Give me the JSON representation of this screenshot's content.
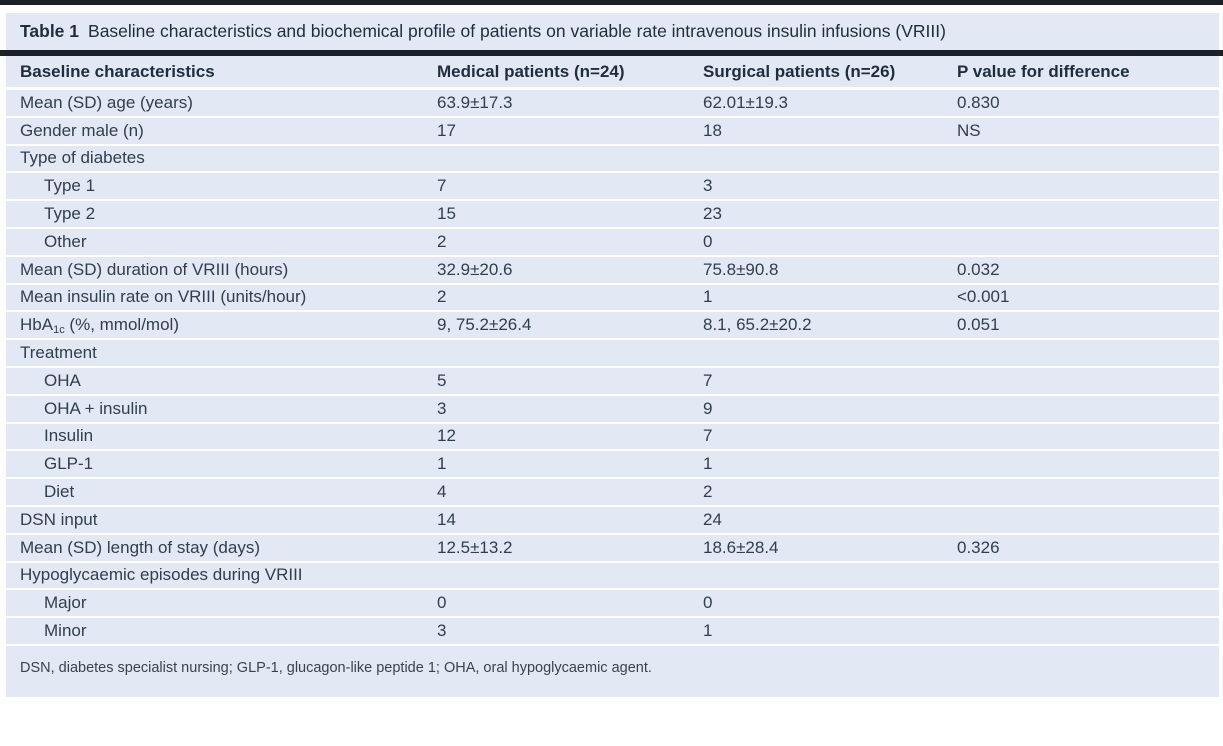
{
  "title": {
    "label": "Table 1",
    "caption": "Baseline characteristics and biochemical profile of patients on variable rate intravenous insulin infusions (VRIII)"
  },
  "columns": [
    "Baseline characteristics",
    "Medical patients (n=24)",
    "Surgical patients (n=26)",
    "P value for difference"
  ],
  "rows": [
    {
      "main": "Mean (SD) age (years)",
      "sub": "",
      "rest": "",
      "medical": "63.9±17.3",
      "surgical": "62.01±19.3",
      "p": "0.830",
      "indent": false
    },
    {
      "main": "Gender male (n)",
      "sub": "",
      "rest": "",
      "medical": "17",
      "surgical": "18",
      "p": "NS",
      "indent": false
    },
    {
      "main": "Type of diabetes",
      "sub": "",
      "rest": "",
      "medical": "",
      "surgical": "",
      "p": "",
      "indent": false
    },
    {
      "main": "Type 1",
      "sub": "",
      "rest": "",
      "medical": "7",
      "surgical": "3",
      "p": "",
      "indent": true
    },
    {
      "main": "Type 2",
      "sub": "",
      "rest": "",
      "medical": "15",
      "surgical": "23",
      "p": "",
      "indent": true
    },
    {
      "main": "Other",
      "sub": "",
      "rest": "",
      "medical": "2",
      "surgical": "0",
      "p": "",
      "indent": true
    },
    {
      "main": "Mean (SD) duration of VRIII (hours)",
      "sub": "",
      "rest": "",
      "medical": "32.9±20.6",
      "surgical": "75.8±90.8",
      "p": "0.032",
      "indent": false
    },
    {
      "main": "Mean insulin rate on VRIII (units/hour)",
      "sub": "",
      "rest": "",
      "medical": "2",
      "surgical": "1",
      "p": "<0.001",
      "indent": false
    },
    {
      "main": "HbA",
      "sub": "1c",
      "rest": " (%, mmol/mol)",
      "medical": "9, 75.2±26.4",
      "surgical": "8.1, 65.2±20.2",
      "p": "0.051",
      "indent": false
    },
    {
      "main": "Treatment",
      "sub": "",
      "rest": "",
      "medical": "",
      "surgical": "",
      "p": "",
      "indent": false
    },
    {
      "main": "OHA",
      "sub": "",
      "rest": "",
      "medical": "5",
      "surgical": "7",
      "p": "",
      "indent": true
    },
    {
      "main": "OHA + insulin",
      "sub": "",
      "rest": "",
      "medical": "3",
      "surgical": "9",
      "p": "",
      "indent": true
    },
    {
      "main": "Insulin",
      "sub": "",
      "rest": "",
      "medical": "12",
      "surgical": "7",
      "p": "",
      "indent": true
    },
    {
      "main": "GLP-1",
      "sub": "",
      "rest": "",
      "medical": "1",
      "surgical": "1",
      "p": "",
      "indent": true
    },
    {
      "main": "Diet",
      "sub": "",
      "rest": "",
      "medical": "4",
      "surgical": "2",
      "p": "",
      "indent": true
    },
    {
      "main": "DSN input",
      "sub": "",
      "rest": "",
      "medical": "14",
      "surgical": "24",
      "p": "",
      "indent": false
    },
    {
      "main": "Mean (SD) length of stay (days)",
      "sub": "",
      "rest": "",
      "medical": "12.5±13.2",
      "surgical": "18.6±28.4",
      "p": "0.326",
      "indent": false
    },
    {
      "main": "Hypoglycaemic episodes during VRIII",
      "sub": "",
      "rest": "",
      "medical": "",
      "surgical": "",
      "p": "",
      "indent": false
    },
    {
      "main": "Major",
      "sub": "",
      "rest": "",
      "medical": "0",
      "surgical": "0",
      "p": "",
      "indent": true
    },
    {
      "main": "Minor",
      "sub": "",
      "rest": "",
      "medical": "3",
      "surgical": "1",
      "p": "",
      "indent": true
    }
  ],
  "footnote": "DSN, diabetes specialist nursing; GLP-1, glucagon-like peptide 1; OHA, oral hypoglycaemic agent.",
  "colors": {
    "row_background": "#e2e8f4",
    "rule": "#1c2127",
    "header_text": "#1f2d3d",
    "body_text": "#313e4d"
  }
}
